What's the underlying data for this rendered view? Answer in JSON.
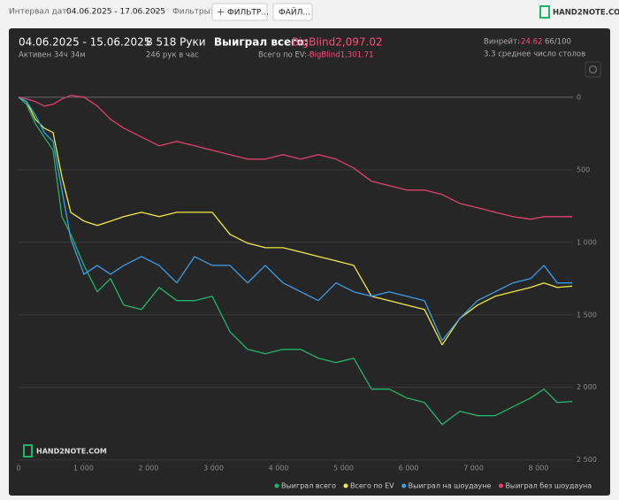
{
  "toolbar": {
    "date_label": "Интервал дат:",
    "date_range": "04.06.2025 - 17.06.2025",
    "filters_label": "Фильтры:",
    "filter_button": "ФИЛЬТР...",
    "file_button": "ФАЙЛ...",
    "logo": "HAND2NOTE.COM"
  },
  "summary": {
    "period": "04.06.2025 - 15.06.2025",
    "active": "Активен 34ч 34м",
    "hands": "8 518 Руки",
    "hands_per_hour": "246 рук в час",
    "won_label": "Выиграл всего:",
    "won_value": "-BigBlind2,097.02",
    "ev_label": "Всего по EV:",
    "ev_value": "-BigBlind1,301.71",
    "winrate_label": "Винрейт:",
    "winrate_value": "-24.62",
    "winrate_unit": "66/100",
    "tables": "3.3 среднее число столов"
  },
  "chart_data": {
    "type": "line",
    "watermark": "HAND2NOTE.COM",
    "x": [
      0,
      122,
      259,
      395,
      531,
      667,
      803,
      1007,
      1211,
      1415,
      1619,
      1891,
      2163,
      2435,
      2707,
      2980,
      3252,
      3524,
      3796,
      4068,
      4340,
      4612,
      4884,
      5156,
      5429,
      5701,
      5973,
      6245,
      6517,
      6789,
      7061,
      7333,
      7605,
      7878,
      8082,
      8286,
      8518
    ],
    "series": [
      {
        "name": "Выиграл всего",
        "color": "#1fb56c",
        "values": [
          0,
          -49,
          -183,
          -274,
          -366,
          -823,
          -945,
          -1159,
          -1341,
          -1250,
          -1433,
          -1463,
          -1311,
          -1402,
          -1402,
          -1372,
          -1616,
          -1738,
          -1768,
          -1738,
          -1738,
          -1799,
          -1829,
          -1799,
          -2012,
          -2012,
          -2073,
          -2104,
          -2256,
          -2165,
          -2195,
          -2195,
          -2134,
          -2073,
          -2012,
          -2104,
          -2097
        ]
      },
      {
        "name": "Всего по EV",
        "color": "#f2e93b",
        "values": [
          0,
          -30,
          -152,
          -213,
          -244,
          -549,
          -793,
          -854,
          -884,
          -854,
          -823,
          -793,
          -823,
          -793,
          -793,
          -793,
          -945,
          -1006,
          -1037,
          -1037,
          -1067,
          -1098,
          -1128,
          -1159,
          -1372,
          -1402,
          -1433,
          -1463,
          -1707,
          -1524,
          -1433,
          -1372,
          -1341,
          -1311,
          -1280,
          -1311,
          -1302
        ]
      },
      {
        "name": "Выиграл на шоудауне",
        "color": "#3b9de8",
        "values": [
          0,
          -30,
          -122,
          -244,
          -305,
          -640,
          -976,
          -1220,
          -1159,
          -1220,
          -1159,
          -1098,
          -1159,
          -1280,
          -1098,
          -1159,
          -1159,
          -1280,
          -1159,
          -1280,
          -1341,
          -1402,
          -1280,
          -1341,
          -1372,
          -1341,
          -1372,
          -1402,
          -1677,
          -1524,
          -1402,
          -1341,
          -1280,
          -1250,
          -1159,
          -1280,
          -1280
        ]
      },
      {
        "name": "Выиграл без шоудауна",
        "color": "#e0416f",
        "values": [
          0,
          -12,
          -30,
          -61,
          -49,
          -12,
          12,
          0,
          -61,
          -152,
          -213,
          -274,
          -335,
          -305,
          -335,
          -366,
          -396,
          -427,
          -427,
          -396,
          -427,
          -396,
          -427,
          -488,
          -579,
          -610,
          -640,
          -640,
          -671,
          -732,
          -762,
          -793,
          -823,
          -841,
          -823,
          -823,
          -823
        ]
      }
    ],
    "xlim": [
      0,
      8530
    ],
    "xticks": [
      0,
      {
        "value": 1000,
        "label": "1 000"
      },
      {
        "value": 2000,
        "label": "2 000"
      },
      {
        "value": 3000,
        "label": "3 000"
      },
      {
        "value": 4000,
        "label": "4 000"
      },
      {
        "value": 5000,
        "label": "5 000"
      },
      {
        "value": 6000,
        "label": "6 000"
      },
      {
        "value": 7000,
        "label": "7 000"
      },
      {
        "value": 8000,
        "label": "8 000"
      }
    ],
    "ylim": [
      60,
      -2520
    ],
    "yticks": [
      0,
      {
        "value": -500,
        "label": "500"
      },
      {
        "value": -1000,
        "label": "1 000"
      },
      {
        "value": -1500,
        "label": "1 500"
      },
      {
        "value": -2000,
        "label": "2 000"
      },
      {
        "value": -2500,
        "label": "2 500"
      }
    ],
    "grid": true
  }
}
